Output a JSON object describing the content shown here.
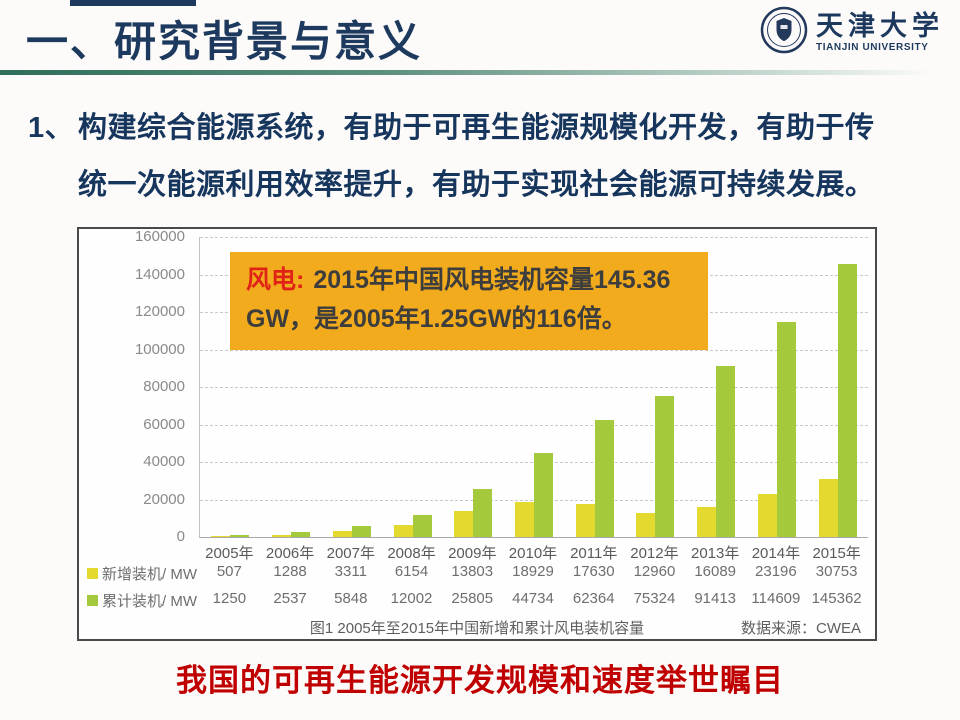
{
  "slide": {
    "header": {
      "title": "一、研究背景与意义"
    },
    "logo": {
      "name_cn": "天津大学",
      "name_en": "TIANJIN UNIVERSITY"
    },
    "intro": {
      "number": "1、",
      "line1": "构建综合能源系统，有助于可再生能源规模化开发，有助于传",
      "line2": "统一次能源利用效率提升，有助于实现社会能源可持续发展。"
    },
    "callout": {
      "prefix": "风电:",
      "line1": "2015年中国风电装机容量145.36",
      "line2": "GW，是2005年1.25GW的116倍。"
    },
    "footer": {
      "statement": "我国的可再生能源开发规模和速度举世瞩目"
    }
  },
  "chart_data": {
    "type": "bar",
    "title": "图1 2005年至2015年中国新增和累计风电装机容量",
    "source": "数据来源：CWEA",
    "categories": [
      "2005年",
      "2006年",
      "2007年",
      "2008年",
      "2009年",
      "2010年",
      "2011年",
      "2012年",
      "2013年",
      "2014年",
      "2015年"
    ],
    "series": [
      {
        "name": "新增装机/ MW",
        "color": "#e4da2f",
        "values": [
          507,
          1288,
          3311,
          6154,
          13803,
          18929,
          17630,
          12960,
          16089,
          23196,
          30753
        ]
      },
      {
        "name": "累计装机/ MW",
        "color": "#a4c93d",
        "values": [
          1250,
          2537,
          5848,
          12002,
          25805,
          44734,
          62364,
          75324,
          91413,
          114609,
          145362
        ]
      }
    ],
    "ylim": [
      0,
      160000
    ],
    "yticks": [
      0,
      20000,
      40000,
      60000,
      80000,
      100000,
      120000,
      140000,
      160000
    ],
    "grid": true,
    "legend_position": "table-left"
  },
  "colors": {
    "title_navy": "#1d3a5e",
    "body_navy": "#17365d",
    "divider_green": "#2f6e5a",
    "callout_bg": "#f2ab1c",
    "callout_prefix_red": "#e02317",
    "footer_red": "#c00000",
    "bar_new": "#e4da2f",
    "bar_cumulative": "#a4c93d"
  }
}
